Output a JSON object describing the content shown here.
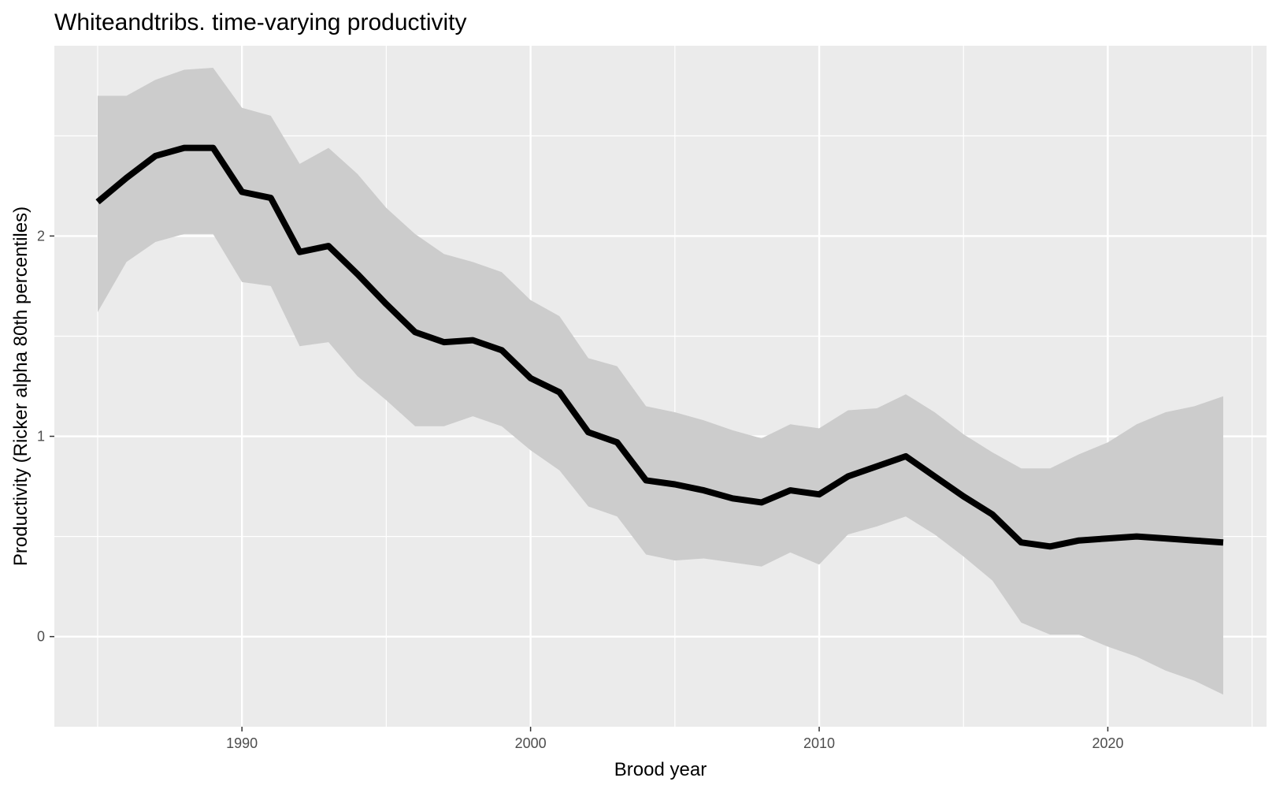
{
  "chart_data": {
    "type": "line",
    "title": "Whiteandtribs. time-varying productivity",
    "xlabel": "Brood year",
    "ylabel": "Productivity (Ricker alpha 80th percentiles)",
    "xlim": [
      1983.5,
      2025.5
    ],
    "ylim": [
      -0.45,
      2.95
    ],
    "x_ticks": [
      1990,
      2000,
      2010,
      2020
    ],
    "x_tick_labels": [
      "1990",
      "2000",
      "2010",
      "2020"
    ],
    "x_minor_ticks": [
      1985,
      1995,
      2005,
      2015,
      2025
    ],
    "y_ticks": [
      0,
      1,
      2
    ],
    "y_tick_labels": [
      "0",
      "1",
      "2"
    ],
    "y_minor_ticks": [
      0.5,
      1.5,
      2.5
    ],
    "grid": true,
    "legend": "none",
    "colors": {
      "panel_background": "#ebebeb",
      "grid": "#ffffff",
      "ribbon": "#cccccc",
      "line": "#000000",
      "tick_text": "#4d4d4d"
    },
    "x": [
      1985,
      1986,
      1987,
      1988,
      1989,
      1990,
      1991,
      1992,
      1993,
      1994,
      1995,
      1996,
      1997,
      1998,
      1999,
      2000,
      2001,
      2002,
      2003,
      2004,
      2005,
      2006,
      2007,
      2008,
      2009,
      2010,
      2011,
      2012,
      2013,
      2014,
      2015,
      2016,
      2017,
      2018,
      2019,
      2020,
      2021,
      2022,
      2023,
      2024
    ],
    "series": [
      {
        "type": "line",
        "values": [
          2.17,
          2.29,
          2.4,
          2.44,
          2.44,
          2.22,
          2.19,
          1.92,
          1.95,
          1.81,
          1.66,
          1.52,
          1.47,
          1.48,
          1.43,
          1.29,
          1.22,
          1.02,
          0.97,
          0.78,
          0.76,
          0.73,
          0.69,
          0.67,
          0.73,
          0.71,
          0.8,
          0.85,
          0.9,
          0.8,
          0.7,
          0.61,
          0.47,
          0.45,
          0.48,
          0.49,
          0.5,
          0.49,
          0.48,
          0.47
        ]
      },
      {
        "type": "ribbon",
        "lower": [
          1.62,
          1.87,
          1.97,
          2.01,
          2.01,
          1.77,
          1.75,
          1.45,
          1.47,
          1.3,
          1.18,
          1.05,
          1.05,
          1.1,
          1.05,
          0.93,
          0.83,
          0.65,
          0.6,
          0.41,
          0.38,
          0.39,
          0.37,
          0.35,
          0.42,
          0.36,
          0.51,
          0.55,
          0.6,
          0.51,
          0.4,
          0.28,
          0.07,
          0.01,
          0.01,
          -0.05,
          -0.1,
          -0.17,
          -0.22,
          -0.29
        ],
        "upper": [
          2.7,
          2.7,
          2.78,
          2.83,
          2.84,
          2.64,
          2.6,
          2.36,
          2.44,
          2.31,
          2.14,
          2.01,
          1.91,
          1.87,
          1.82,
          1.68,
          1.6,
          1.39,
          1.35,
          1.15,
          1.12,
          1.08,
          1.03,
          0.99,
          1.06,
          1.04,
          1.13,
          1.14,
          1.21,
          1.12,
          1.01,
          0.92,
          0.84,
          0.84,
          0.91,
          0.97,
          1.06,
          1.12,
          1.15,
          1.2
        ]
      }
    ]
  }
}
